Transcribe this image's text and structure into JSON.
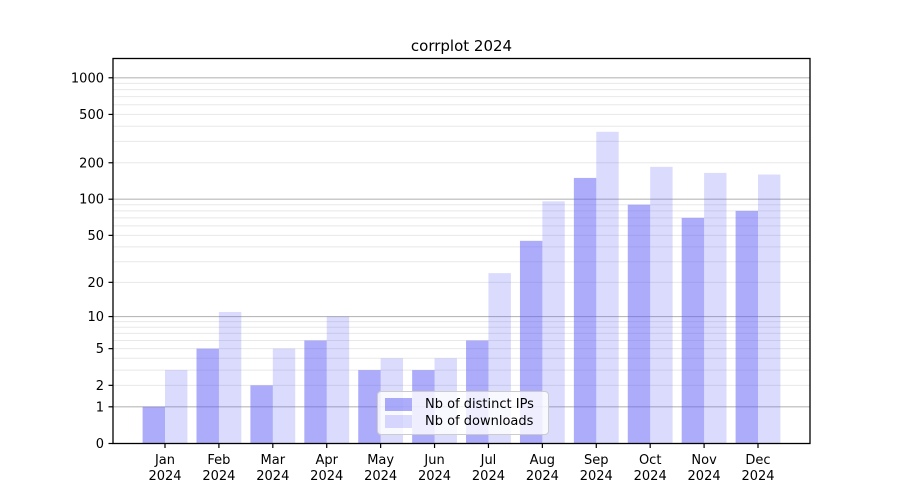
{
  "chart_data": {
    "type": "bar",
    "title": "corrplot 2024",
    "categories": [
      "Jan 2024",
      "Feb 2024",
      "Mar 2024",
      "Apr 2024",
      "May 2024",
      "Jun 2024",
      "Jul 2024",
      "Aug 2024",
      "Sep 2024",
      "Oct 2024",
      "Nov 2024",
      "Dec 2024"
    ],
    "x_tick_line1": [
      "Jan",
      "Feb",
      "Mar",
      "Apr",
      "May",
      "Jun",
      "Jul",
      "Aug",
      "Sep",
      "Oct",
      "Nov",
      "Dec"
    ],
    "x_tick_line2": "2024",
    "series": [
      {
        "name": "Nb of distinct IPs",
        "color": "rgba(90,90,245,0.5)",
        "values": [
          1,
          5,
          2,
          6,
          3,
          3,
          6,
          45,
          150,
          90,
          70,
          80
        ]
      },
      {
        "name": "Nb of downloads",
        "color": "rgba(90,90,245,0.22)",
        "values": [
          3,
          11,
          5,
          10,
          4,
          4,
          24,
          96,
          360,
          185,
          165,
          160
        ]
      }
    ],
    "yscale": "log1p",
    "ylim": [
      0,
      1440
    ],
    "ytick_labels": [
      "0",
      "1",
      "2",
      "5",
      "10",
      "20",
      "50",
      "100",
      "200",
      "500",
      "1000"
    ],
    "yticks": [
      0,
      1,
      2,
      5,
      10,
      20,
      50,
      100,
      200,
      500,
      1000
    ],
    "major_gridlines": [
      1,
      10,
      100,
      1000
    ],
    "minor_gridlines": [
      2,
      3,
      4,
      5,
      6,
      7,
      8,
      9,
      20,
      30,
      40,
      50,
      60,
      70,
      80,
      90,
      200,
      300,
      400,
      500,
      600,
      700,
      800,
      900
    ],
    "grid": true,
    "legend_position": "inside lower-center",
    "colors": {
      "bar_dark": "rgba(90,90,245,0.5)",
      "bar_light": "rgba(90,90,245,0.22)",
      "major_grid": "#b9b9b9",
      "minor_grid": "#e8e8e8",
      "spine": "#000000",
      "background": "#ffffff"
    }
  },
  "legend": {
    "items": [
      {
        "label": "Nb of distinct IPs"
      },
      {
        "label": "Nb of downloads"
      }
    ]
  }
}
